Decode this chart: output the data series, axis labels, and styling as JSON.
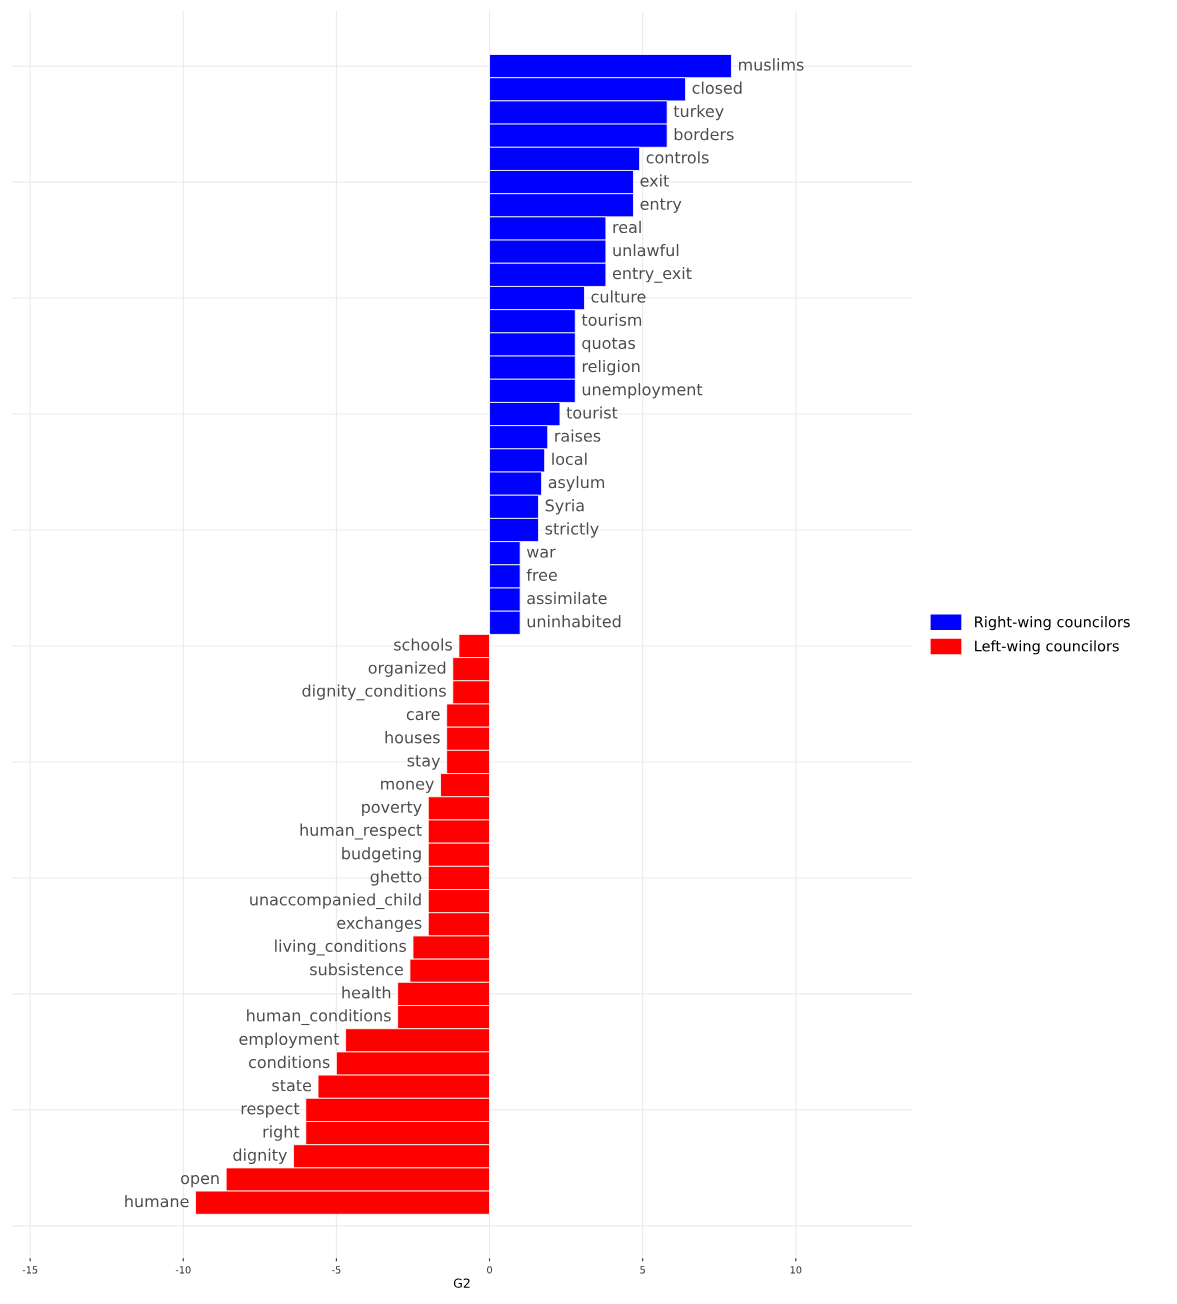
{
  "chart_data": {
    "type": "bar",
    "orientation": "horizontal",
    "xlabel": "G2",
    "categories": [
      "muslims",
      "closed",
      "turkey",
      "borders",
      "controls",
      "exit",
      "entry",
      "real",
      "unlawful",
      "entry_exit",
      "culture",
      "tourism",
      "quotas",
      "religion",
      "unemployment",
      "tourist",
      "raises",
      "local",
      "asylum",
      "Syria",
      "strictly",
      "war",
      "free",
      "assimilate",
      "uninhabited",
      "schools",
      "organized",
      "dignity_conditions",
      "care",
      "houses",
      "stay",
      "money",
      "poverty",
      "human_respect",
      "budgeting",
      "ghetto",
      "unaccompanied_child",
      "exchanges",
      "living_conditions",
      "subsistence",
      "health",
      "human_conditions",
      "employment",
      "conditions",
      "state",
      "respect",
      "right",
      "dignity",
      "open",
      "humane"
    ],
    "series": [
      {
        "name": "Right-wing councilors",
        "color": "#0000ff",
        "values": [
          7.9,
          6.4,
          5.8,
          5.8,
          4.9,
          4.7,
          4.7,
          3.8,
          3.8,
          3.8,
          3.1,
          2.8,
          2.8,
          2.8,
          2.8,
          2.3,
          1.9,
          1.8,
          1.7,
          1.6,
          1.6,
          1.0,
          1.0,
          1.0,
          1.0,
          null,
          null,
          null,
          null,
          null,
          null,
          null,
          null,
          null,
          null,
          null,
          null,
          null,
          null,
          null,
          null,
          null,
          null,
          null,
          null,
          null,
          null,
          null,
          null,
          null
        ]
      },
      {
        "name": "Left-wing councilors",
        "color": "#ff0000",
        "values": [
          null,
          null,
          null,
          null,
          null,
          null,
          null,
          null,
          null,
          null,
          null,
          null,
          null,
          null,
          null,
          null,
          null,
          null,
          null,
          null,
          null,
          null,
          null,
          null,
          null,
          -1.0,
          -1.2,
          -1.2,
          -1.4,
          -1.4,
          -1.4,
          -1.6,
          -2.0,
          -2.0,
          -2.0,
          -2.0,
          -2.0,
          -2.0,
          -2.5,
          -2.6,
          -3.0,
          -3.0,
          -4.7,
          -5.0,
          -5.6,
          -6.0,
          -6.0,
          -6.4,
          -8.6,
          -9.6
        ]
      }
    ],
    "xlim": [
      -15.6,
      13.8
    ],
    "xticks": [
      -15,
      -10,
      -5,
      0,
      5,
      10
    ],
    "grid": true,
    "legend": "right",
    "tick_labels": "x"
  }
}
